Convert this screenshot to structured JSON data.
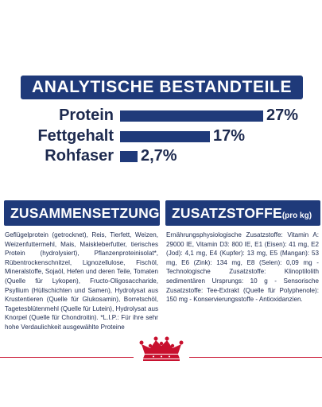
{
  "analytics": {
    "title": "ANALYTISCHE BESTANDTEILE",
    "rows": [
      {
        "label": "Protein",
        "value": "27%",
        "fraction": 0.27
      },
      {
        "label": "Fettgehalt",
        "value": "17%",
        "fraction": 0.17
      },
      {
        "label": "Rohfaser",
        "value": "2,7%",
        "fraction": 0.027
      }
    ]
  },
  "composition": {
    "title": "ZUSAMMENSETZUNG",
    "text": "Geflügelprotein (getrocknet), Reis, Tierfett, Weizen, Weizenfuttermehl, Mais, Maiskleberfutter, tierisches Protein (hydrolysiert), Pflanzenproteinisolat*, Rübentrockenschnitzel, Lignozellulose, Fischöl, Mineralstoffe, Sojaöl, Hefen und deren Teile, Tomaten (Quelle für Lykopen), Fructo-Oligosaccharide, Psyllium (Hüllschichten und Samen), Hydrolysat aus Krustentieren (Quelle für Glukosamin), Borretschöl, Tagetesblütenmehl (Quelle für Lutein), Hydrolysat aus Knorpel (Quelle für Chondroitin). *L.I.P.: Für ihre sehr hohe Verdaulichkeit ausgewählte Proteine"
  },
  "additives": {
    "title": "ZUSATZSTOFFE",
    "unit": "(pro kg)",
    "text": "Ernährungsphysiologische Zusatzstoffe: Vitamin A: 29000 IE, Vitamin D3: 800 IE, E1 (Eisen): 41 mg, E2 (Jod): 4,1 mg, E4 (Kupfer): 13 mg, E5 (Mangan): 53 mg, E6 (Zink): 134 mg, E8 (Selen): 0,09 mg - Technologische Zusatzstoffe: Klinoptilolith sedimentären Ursprungs: 10 g - Sensorische Zusatzstoffe: Tee-Extrakt (Quelle für Polyphenole): 150 mg - Konservierungsstoffe - Antioxidanzien."
  },
  "brand": {
    "logo_icon": "crown-icon",
    "color": "#c8102e"
  },
  "colors": {
    "navy": "#1f3a7a",
    "text": "#1d2a4f",
    "accent": "#c8102e"
  }
}
